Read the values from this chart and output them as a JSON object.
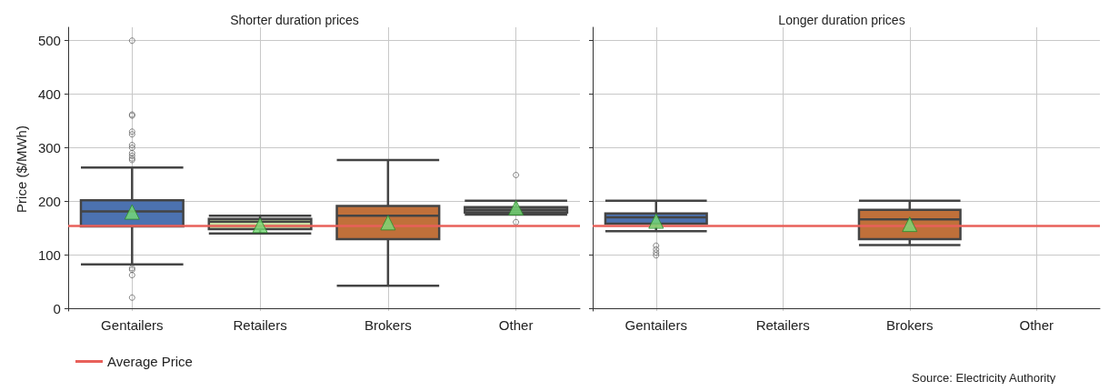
{
  "chart_data": [
    {
      "type": "box",
      "title": "Shorter duration prices",
      "ylabel": "Price ($/MWh)",
      "categories": [
        "Gentailers",
        "Retailers",
        "Brokers",
        "Other"
      ],
      "colors": [
        "#4c72b0",
        "#c9dba0",
        "#c0703a",
        "#808080"
      ],
      "boxes": [
        {
          "low": 82,
          "q1": 153,
          "median": 181,
          "q3": 202,
          "high": 263,
          "mean": 180,
          "outliers": [
            500,
            362,
            360,
            330,
            325,
            305,
            300,
            290,
            285,
            280,
            277,
            75,
            72,
            62,
            20
          ]
        },
        {
          "low": 140,
          "q1": 148,
          "median": 162,
          "q3": 167,
          "high": 173,
          "mean": 155
        },
        {
          "low": 42,
          "q1": 129,
          "median": 173,
          "q3": 191,
          "high": 277,
          "mean": 160
        },
        {
          "low": 175,
          "q1": 179,
          "median": 184,
          "q3": 189,
          "high": 201,
          "mean": 188,
          "outliers": [
            249,
            161
          ]
        }
      ],
      "ylim": [
        -5,
        525
      ],
      "yticks": [
        0,
        100,
        200,
        300,
        400,
        500
      ],
      "grid": true,
      "marker": "triangle",
      "legend": "bottom left",
      "ref_lines": [
        {
          "axis": "y",
          "value": 155,
          "label": "Average Price",
          "color": "#e8605a"
        }
      ]
    },
    {
      "type": "box",
      "title": "Longer duration prices",
      "categories": [
        "Gentailers",
        "Retailers",
        "Brokers",
        "Other"
      ],
      "colors": [
        "#4c72b0",
        null,
        "#c0703a",
        null
      ],
      "boxes": [
        {
          "low": 144,
          "q1": 158,
          "median": 170,
          "q3": 177,
          "high": 201,
          "mean": 163,
          "outliers": [
            117,
            110,
            104,
            99
          ]
        },
        null,
        {
          "low": 118,
          "q1": 129,
          "median": 166,
          "q3": 184,
          "high": 201,
          "mean": 157
        },
        null
      ],
      "ylim": [
        -5,
        525
      ],
      "yticks": [
        0,
        100,
        200,
        300,
        400,
        500
      ],
      "grid": true,
      "marker": "triangle",
      "tick_labels": "x",
      "ref_lines": [
        {
          "axis": "y",
          "value": 155,
          "color": "#e8605a"
        }
      ],
      "annotations": [
        "Source: Electricity Authority"
      ]
    }
  ]
}
